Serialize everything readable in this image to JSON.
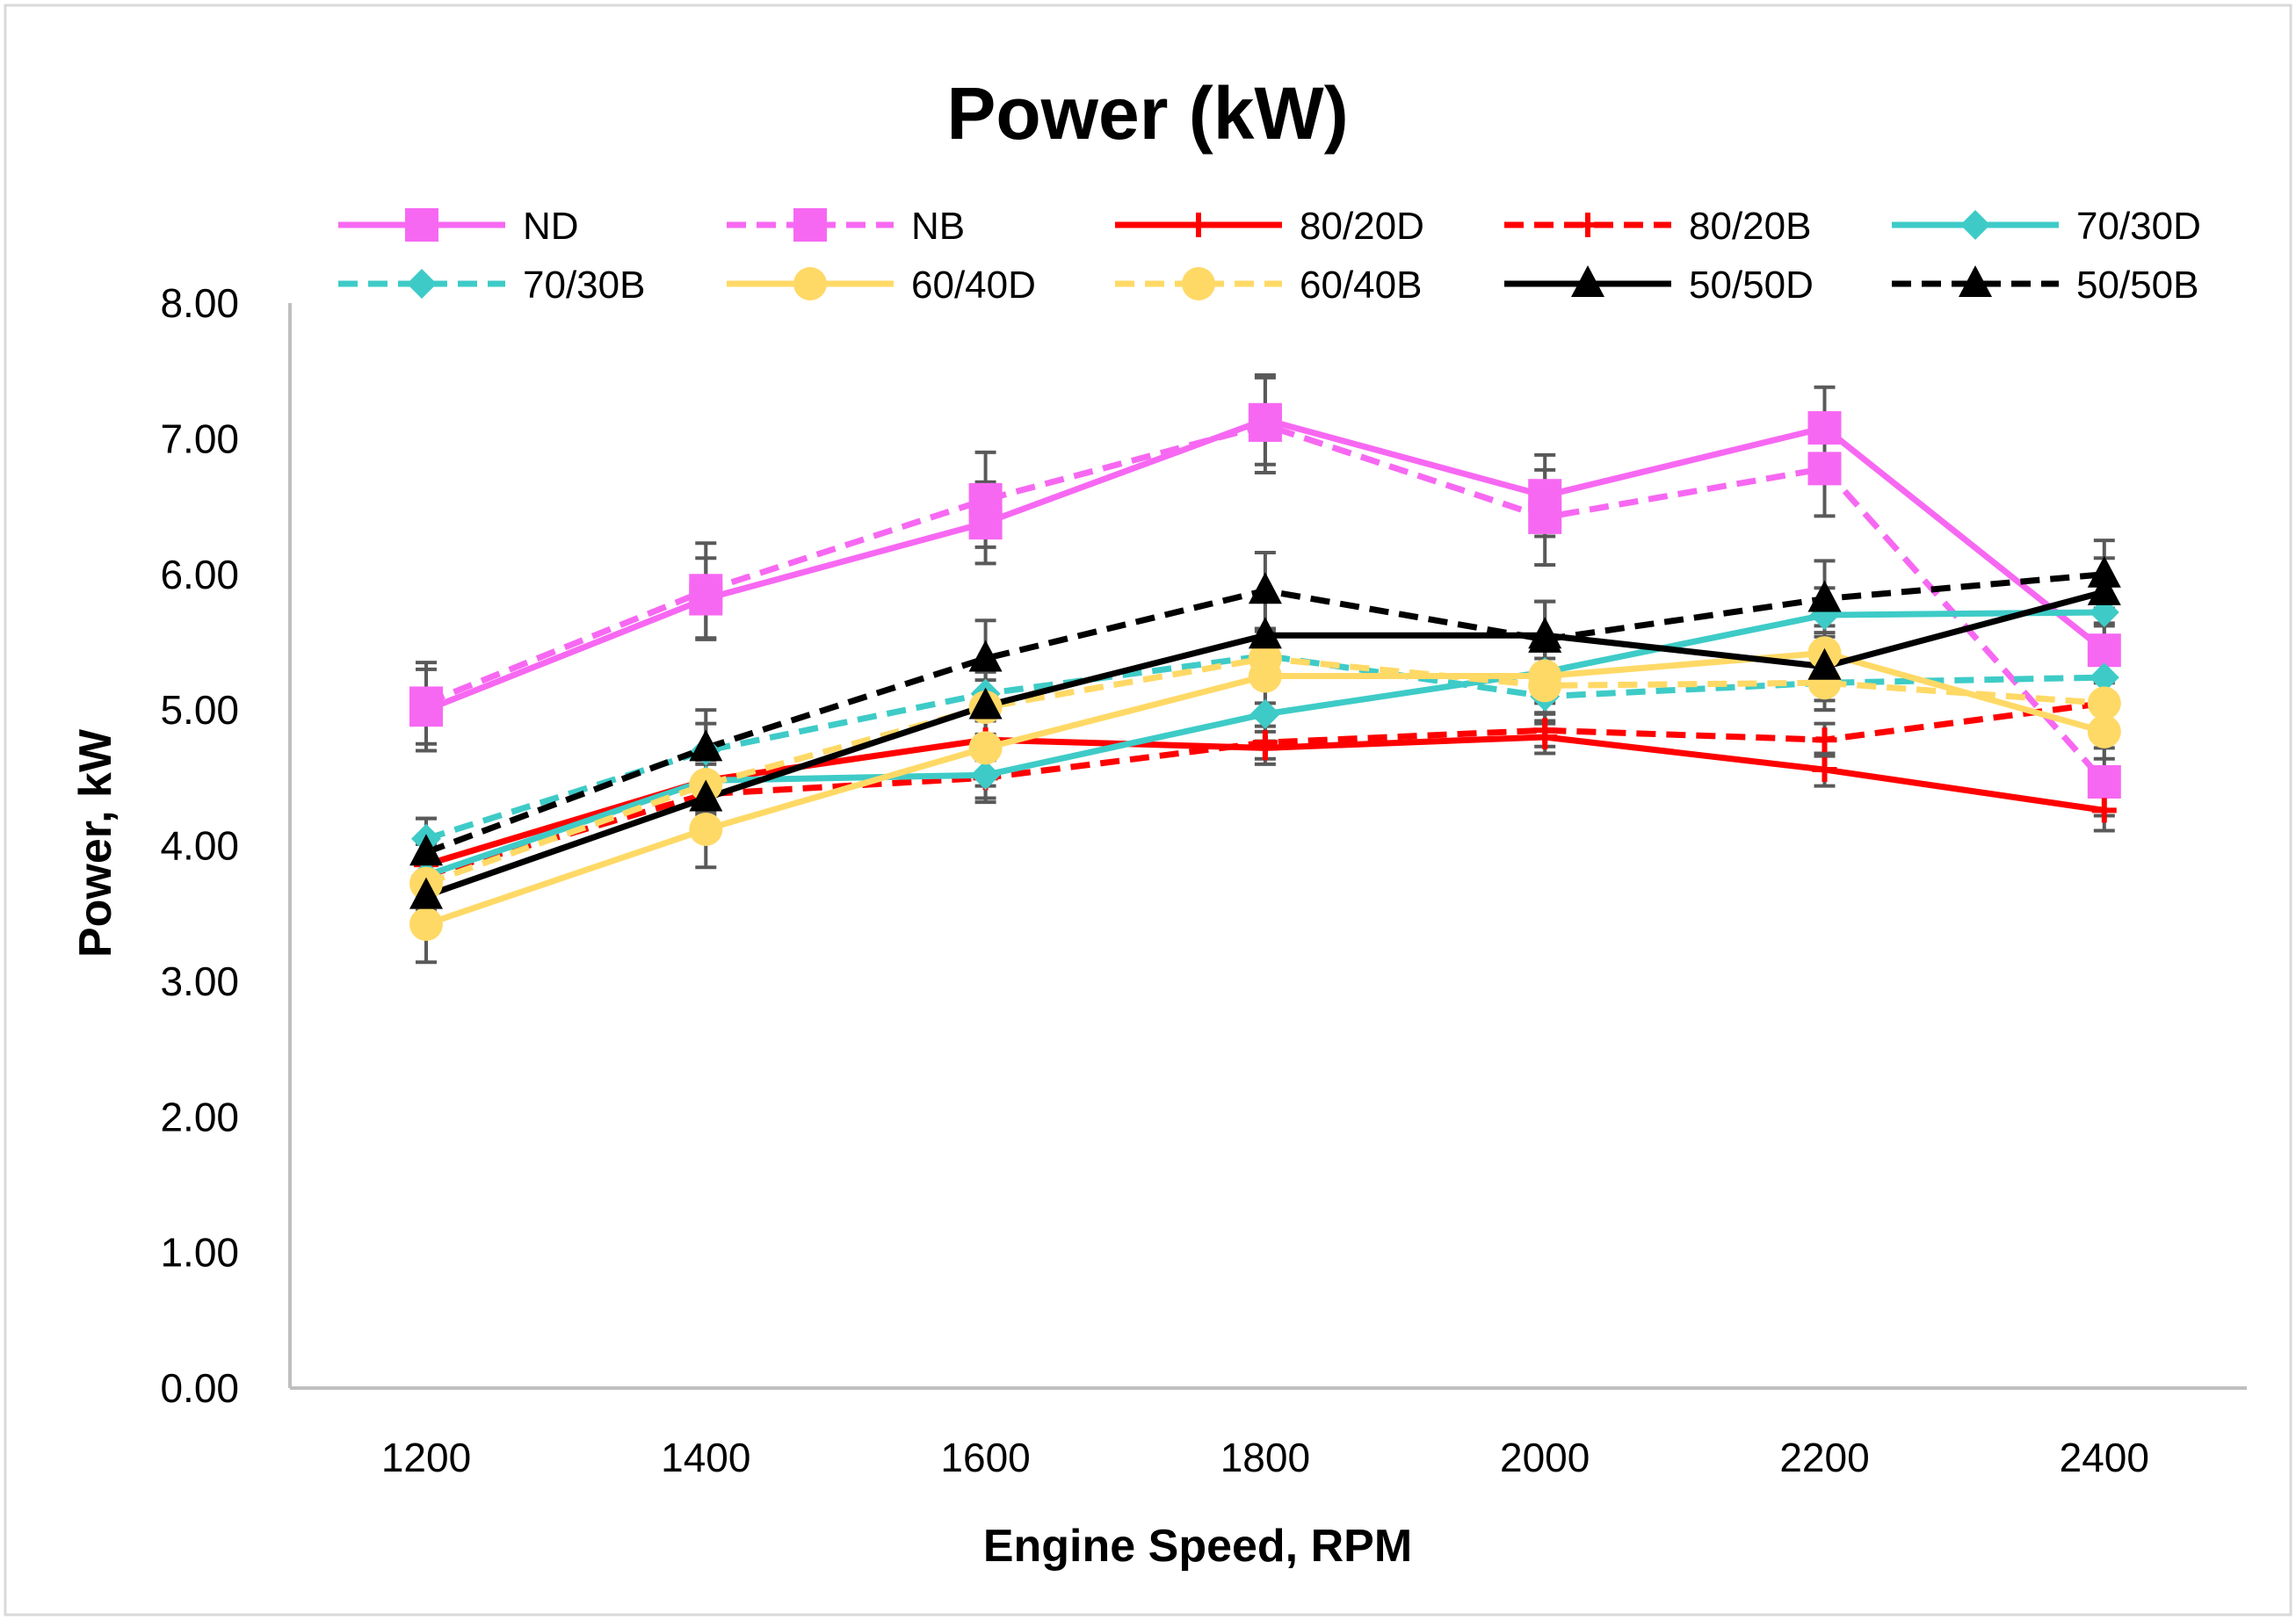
{
  "chart_data": {
    "type": "line",
    "title": "Power (kW)",
    "xlabel": "Engine Speed, RPM",
    "ylabel": "Power, kW",
    "x": [
      1200,
      1400,
      1600,
      1800,
      2000,
      2200,
      2400
    ],
    "x_tick_labels": [
      "1200",
      "1400",
      "1600",
      "1800",
      "2000",
      "2200",
      "2400"
    ],
    "ylim": [
      0,
      8
    ],
    "y_ticks": [
      0,
      1,
      2,
      3,
      4,
      5,
      6,
      7,
      8
    ],
    "y_tick_labels": [
      "0.00",
      "1.00",
      "2.00",
      "3.00",
      "4.00",
      "5.00",
      "6.00",
      "7.00",
      "8.00"
    ],
    "grid": false,
    "legend_position": "top",
    "error_bars": true,
    "series": [
      {
        "name": "ND",
        "color": "#F768F2",
        "dashed": false,
        "marker": "square",
        "values": [
          5.0,
          5.82,
          6.38,
          7.14,
          6.58,
          7.08,
          5.44
        ],
        "errors": [
          0.3,
          0.3,
          0.3,
          0.33,
          0.3,
          0.3,
          0.2
        ]
      },
      {
        "name": "NB",
        "color": "#F768F2",
        "dashed": true,
        "marker": "square",
        "values": [
          5.05,
          5.88,
          6.55,
          7.1,
          6.42,
          6.78,
          4.47
        ],
        "errors": [
          0.3,
          0.35,
          0.35,
          0.35,
          0.35,
          0.35,
          0.25
        ]
      },
      {
        "name": "80/20D",
        "color": "#FF0000",
        "dashed": false,
        "marker": "plus",
        "values": [
          3.86,
          4.48,
          4.78,
          4.72,
          4.8,
          4.56,
          4.26
        ],
        "errors": [
          0.15,
          0.15,
          0.15,
          0.12,
          0.12,
          0.12,
          0.15
        ]
      },
      {
        "name": "80/20B",
        "color": "#FF0000",
        "dashed": true,
        "marker": "plus",
        "values": [
          3.78,
          4.38,
          4.5,
          4.76,
          4.85,
          4.78,
          5.05
        ],
        "errors": [
          0.15,
          0.15,
          0.15,
          0.12,
          0.12,
          0.12,
          0.15
        ]
      },
      {
        "name": "70/30D",
        "color": "#3ECBC7",
        "dashed": false,
        "marker": "diamond",
        "values": [
          3.78,
          4.48,
          4.52,
          4.97,
          5.28,
          5.7,
          5.72
        ],
        "errors": [
          0.15,
          0.2,
          0.2,
          0.2,
          0.2,
          0.2,
          0.2
        ]
      },
      {
        "name": "70/30B",
        "color": "#3ECBC7",
        "dashed": true,
        "marker": "diamond",
        "values": [
          4.05,
          4.7,
          5.12,
          5.4,
          5.1,
          5.2,
          5.24
        ],
        "errors": [
          0.15,
          0.2,
          0.2,
          0.2,
          0.2,
          0.2,
          0.2
        ]
      },
      {
        "name": "60/40D",
        "color": "#FFD966",
        "dashed": false,
        "marker": "circle",
        "values": [
          3.42,
          4.12,
          4.72,
          5.25,
          5.25,
          5.42,
          4.84
        ],
        "errors": [
          0.28,
          0.28,
          0.28,
          0.2,
          0.2,
          0.2,
          0.2
        ]
      },
      {
        "name": "60/40B",
        "color": "#FFD966",
        "dashed": true,
        "marker": "circle",
        "values": [
          3.72,
          4.45,
          5.02,
          5.38,
          5.18,
          5.2,
          5.05
        ],
        "errors": [
          0.2,
          0.2,
          0.2,
          0.2,
          0.2,
          0.2,
          0.2
        ]
      },
      {
        "name": "50/50D",
        "color": "#000000",
        "dashed": false,
        "marker": "triangle",
        "values": [
          3.63,
          4.35,
          5.03,
          5.55,
          5.55,
          5.32,
          5.87
        ],
        "errors": [
          0.25,
          0.25,
          0.25,
          0.25,
          0.25,
          0.25,
          0.25
        ]
      },
      {
        "name": "50/50B",
        "color": "#000000",
        "dashed": true,
        "marker": "triangle",
        "values": [
          3.95,
          4.72,
          5.38,
          5.88,
          5.52,
          5.82,
          6.0
        ],
        "errors": [
          0.25,
          0.28,
          0.28,
          0.28,
          0.28,
          0.28,
          0.25
        ]
      }
    ]
  }
}
